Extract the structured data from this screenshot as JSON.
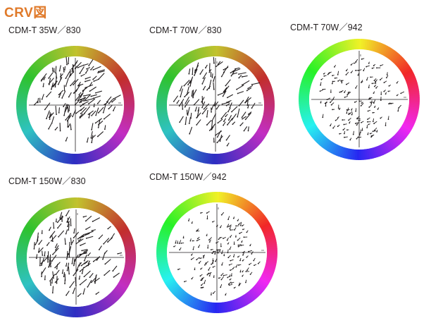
{
  "page": {
    "title": "CRV図",
    "title_color": "#e07a2a"
  },
  "panels": [
    {
      "label": "CDM-T 35W／830",
      "variant": "830"
    },
    {
      "label": "CDM-T 70W／830",
      "variant": "830"
    },
    {
      "label": "CDM-T 70W／942",
      "variant": "942"
    },
    {
      "label": "CDM-T 150W／830",
      "variant": "830"
    },
    {
      "label": "CDM-T 150W／942",
      "variant": "942"
    }
  ]
}
